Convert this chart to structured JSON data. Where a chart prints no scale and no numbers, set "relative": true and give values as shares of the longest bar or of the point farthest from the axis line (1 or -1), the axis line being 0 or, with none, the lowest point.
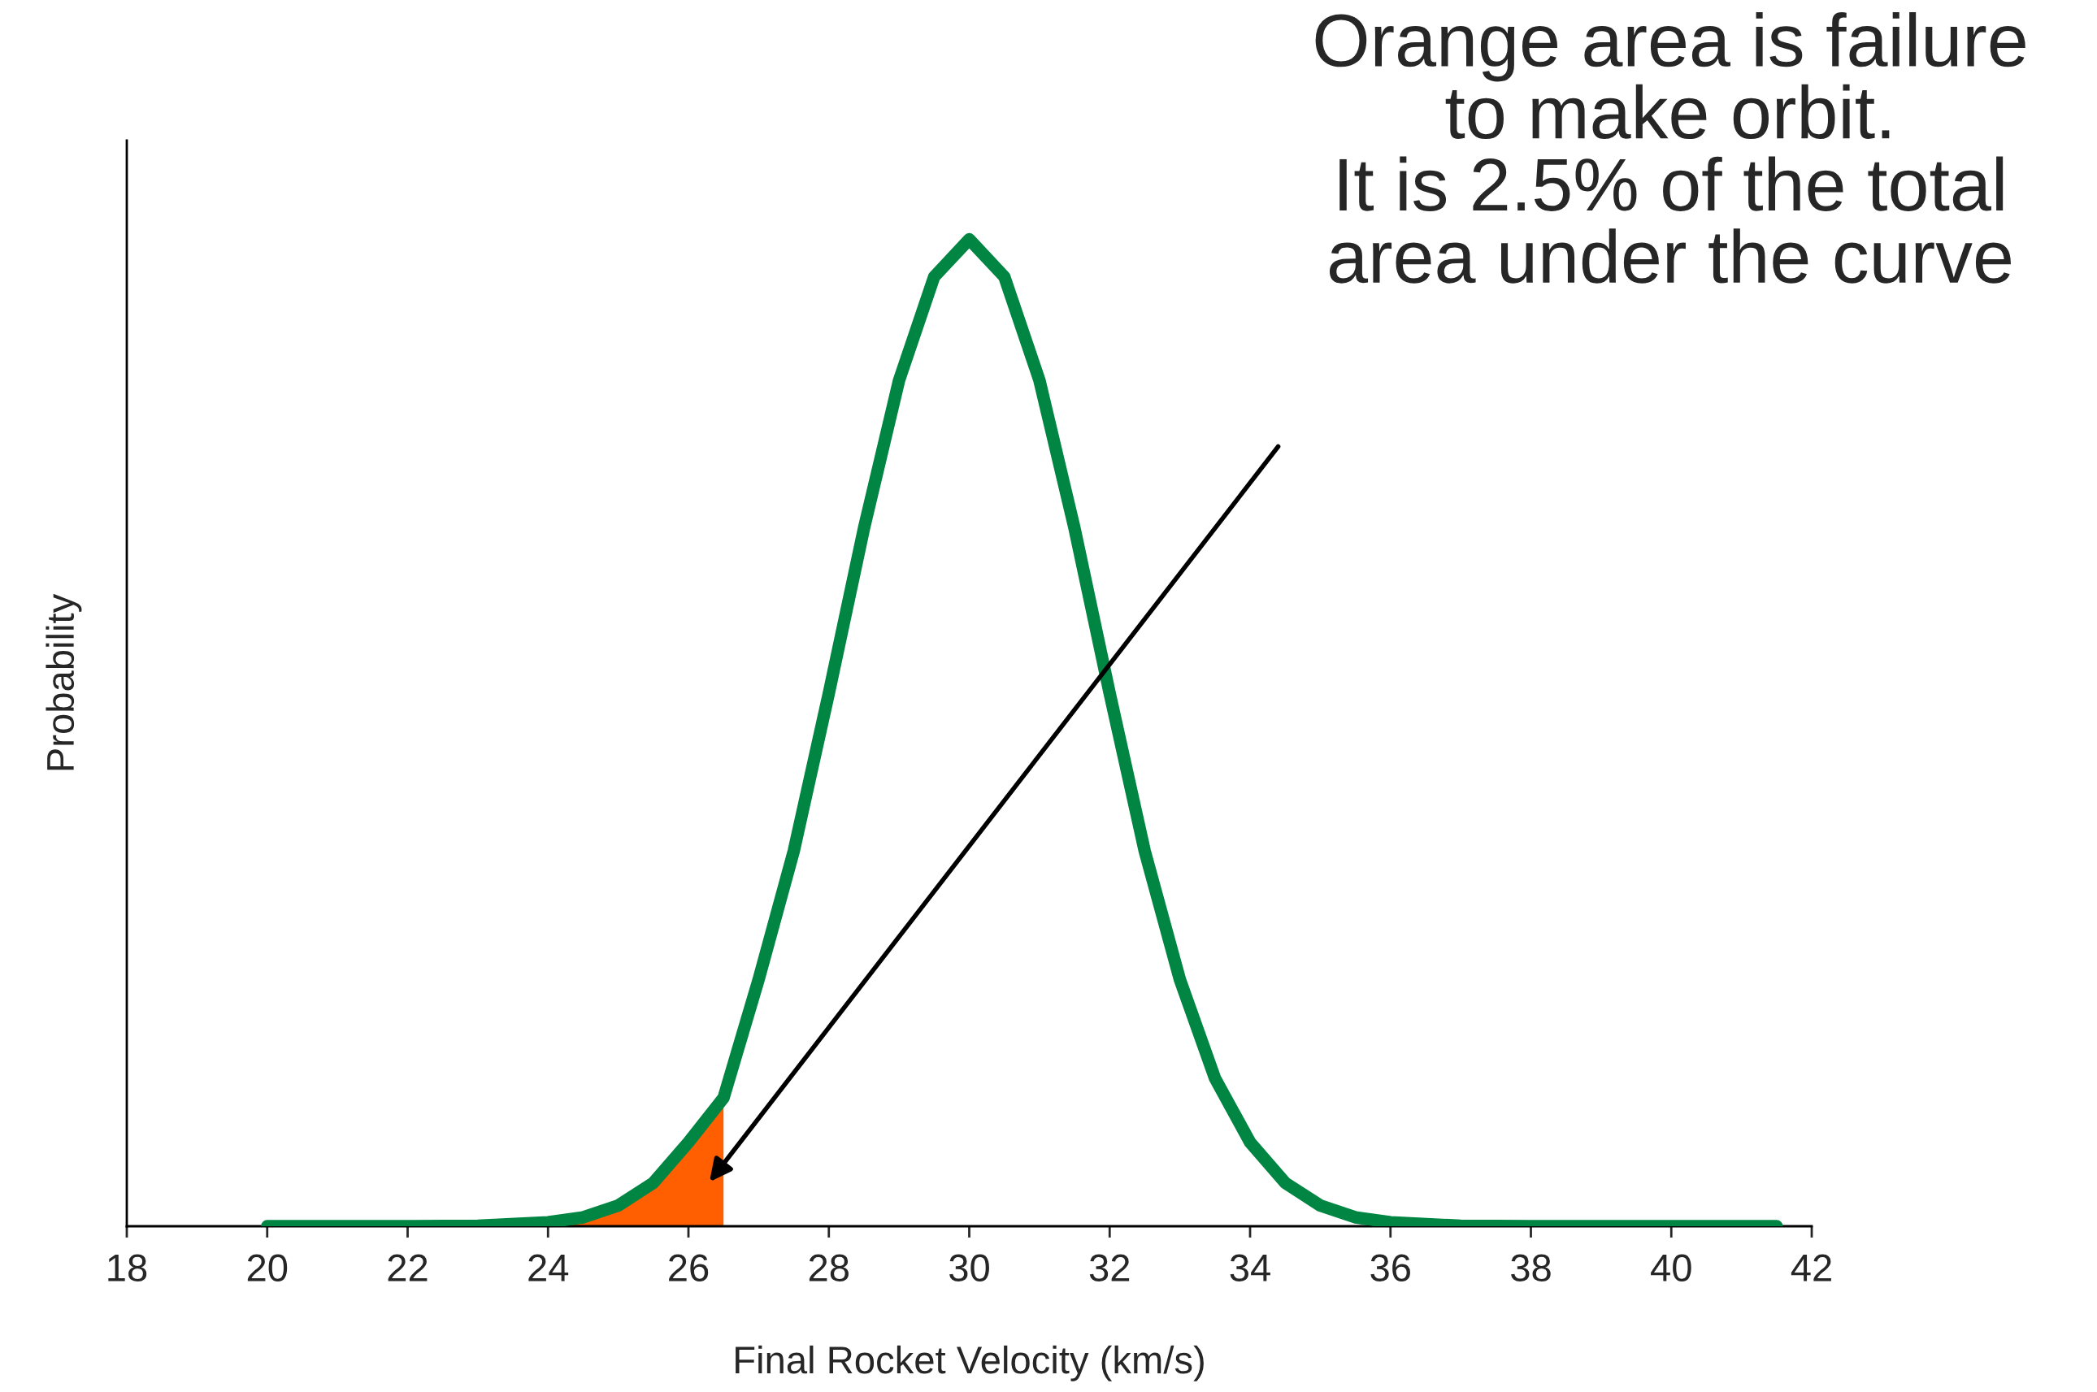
{
  "chart_data": {
    "type": "line",
    "relative": true,
    "xlabel": "Final Rocket Velocity (km/s)",
    "ylabel": "Probability",
    "xlim": [
      18,
      42
    ],
    "xticks": [
      18,
      20,
      22,
      24,
      26,
      28,
      30,
      32,
      34,
      36,
      38,
      40,
      42
    ],
    "grid": false,
    "legend": false,
    "series": [
      {
        "type": "area",
        "color": "#ff5f00",
        "x": [
          24,
          24.5,
          25,
          25.5,
          26,
          26.5
        ],
        "values": [
          0.004,
          0.009,
          0.021,
          0.044,
          0.085,
          0.13
        ]
      },
      {
        "color": "#008542",
        "x": [
          20,
          22,
          23,
          24,
          24.5,
          25,
          25.5,
          26,
          26.5,
          27,
          27.5,
          28,
          28.5,
          29,
          29.5,
          30,
          30.5,
          31,
          31.5,
          32,
          32.5,
          33,
          33.5,
          34,
          34.5,
          35,
          35.5,
          36,
          37,
          38,
          40,
          41.5
        ],
        "values": [
          0,
          0,
          0.0005,
          0.004,
          0.009,
          0.021,
          0.044,
          0.085,
          0.13,
          0.25,
          0.38,
          0.54,
          0.707,
          0.857,
          0.962,
          1.0,
          0.962,
          0.857,
          0.707,
          0.54,
          0.38,
          0.25,
          0.15,
          0.085,
          0.044,
          0.021,
          0.009,
          0.004,
          0.0005,
          0,
          0,
          0
        ]
      }
    ],
    "annotations": [
      "Orange area is failure\nto make orbit.\nIt is 2.5% of the total\narea under the curve"
    ]
  }
}
